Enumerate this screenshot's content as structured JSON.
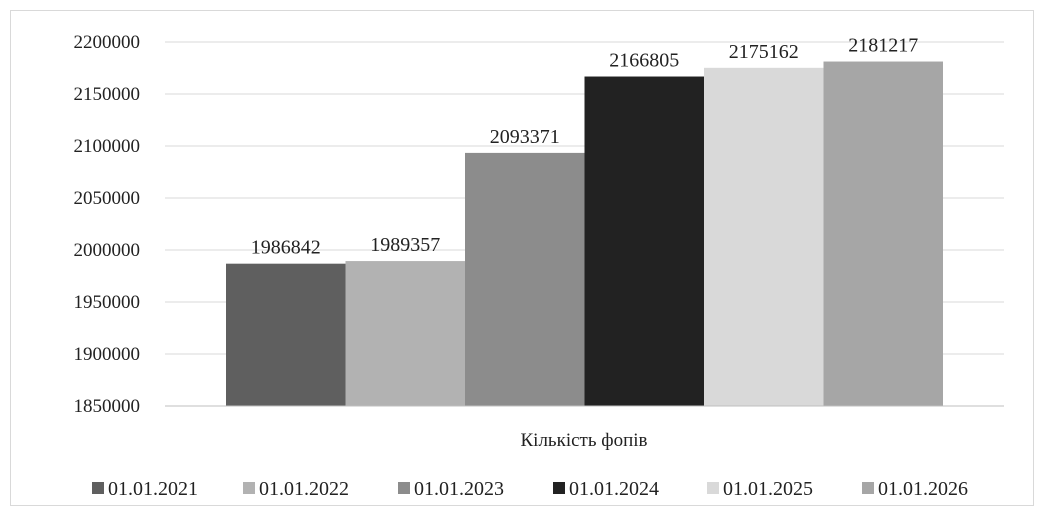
{
  "chart_data": {
    "type": "bar",
    "title": "",
    "xlabel": "",
    "ylabel": "",
    "categories": [
      "Кількість фопів"
    ],
    "series": [
      {
        "name": "01.01.2021",
        "values": [
          1986842
        ],
        "color": "#5f5f5f"
      },
      {
        "name": "01.01.2022",
        "values": [
          1989357
        ],
        "color": "#b2b2b2"
      },
      {
        "name": "01.01.2023",
        "values": [
          2093371
        ],
        "color": "#8c8c8c"
      },
      {
        "name": "01.01.2024",
        "values": [
          2166805
        ],
        "color": "#222222"
      },
      {
        "name": "01.01.2025",
        "values": [
          2175162
        ],
        "color": "#d9d9d9"
      },
      {
        "name": "01.01.2026",
        "values": [
          2181217
        ],
        "color": "#a6a6a6"
      }
    ],
    "ylim": [
      1850000,
      2200000
    ],
    "yticks": [
      "1850000",
      "1900000",
      "1950000",
      "2000000",
      "2050000",
      "2100000",
      "2150000",
      "2200000"
    ],
    "grid": true,
    "legend_position": "bottom",
    "data_labels": [
      "1986842",
      "1989357",
      "2093371",
      "2166805",
      "2175162",
      "2181217"
    ]
  }
}
